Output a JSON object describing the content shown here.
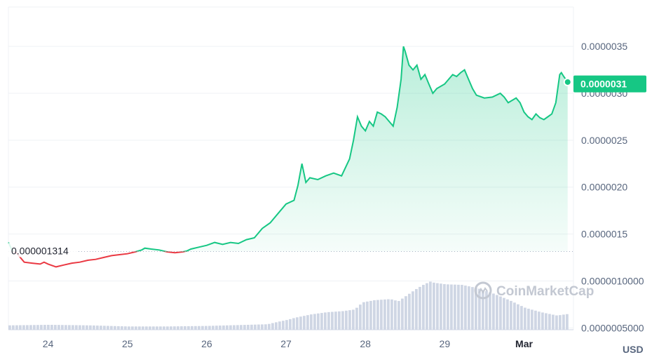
{
  "chart_data": {
    "type": "line",
    "currency": "USD",
    "colors": {
      "up": "#16c784",
      "down": "#ea3943",
      "volume": "#cfd6e4",
      "grid": "#eff2f5",
      "label_bg": "#16c784"
    },
    "y_ticks": [
      "0.0000035",
      "0.0000030",
      "0.0000025",
      "0.0000020",
      "0.0000015",
      "0.0000010000",
      "0.0000005000"
    ],
    "y_tick_values": [
      3.5e-06,
      3e-06,
      2.5e-06,
      2e-06,
      1.5e-06,
      1e-06,
      5e-07
    ],
    "ylim": [
      4.8e-07,
      3.92e-06
    ],
    "x_ticks": [
      "24",
      "25",
      "26",
      "27",
      "28",
      "29",
      "Mar"
    ],
    "x_tick_values": [
      0,
      1,
      2,
      3,
      4,
      5,
      6
    ],
    "xlim": [
      -0.5,
      6.57
    ],
    "open_price_label": "0.000001314",
    "open_price": 1.314e-06,
    "last_price_label": "0.0000031",
    "last_price": 3.1e-06,
    "watermark": "CoinMarketCap",
    "series": [
      {
        "values": [
          [
            -0.5,
            1.41
          ],
          [
            -0.45,
            1.32
          ],
          [
            -0.4,
            1.3
          ],
          [
            -0.3,
            1.2
          ],
          [
            -0.2,
            1.19
          ],
          [
            -0.1,
            1.18
          ],
          [
            -0.05,
            1.2
          ],
          [
            0.0,
            1.18
          ],
          [
            0.1,
            1.15
          ],
          [
            0.2,
            1.17
          ],
          [
            0.3,
            1.19
          ],
          [
            0.4,
            1.2
          ],
          [
            0.5,
            1.22
          ],
          [
            0.6,
            1.23
          ],
          [
            0.7,
            1.25
          ],
          [
            0.8,
            1.27
          ],
          [
            0.9,
            1.28
          ],
          [
            1.0,
            1.29
          ],
          [
            1.1,
            1.31
          ],
          [
            1.18,
            1.33
          ],
          [
            1.22,
            1.35
          ],
          [
            1.3,
            1.34
          ],
          [
            1.4,
            1.33
          ],
          [
            1.5,
            1.31
          ],
          [
            1.6,
            1.3
          ],
          [
            1.7,
            1.31
          ],
          [
            1.75,
            1.32
          ],
          [
            1.8,
            1.34
          ],
          [
            1.9,
            1.36
          ],
          [
            2.0,
            1.38
          ],
          [
            2.1,
            1.41
          ],
          [
            2.2,
            1.39
          ],
          [
            2.3,
            1.41
          ],
          [
            2.4,
            1.4
          ],
          [
            2.5,
            1.44
          ],
          [
            2.6,
            1.46
          ],
          [
            2.7,
            1.56
          ],
          [
            2.8,
            1.62
          ],
          [
            2.9,
            1.72
          ],
          [
            3.0,
            1.82
          ],
          [
            3.1,
            1.86
          ],
          [
            3.15,
            2.02
          ],
          [
            3.2,
            2.25
          ],
          [
            3.25,
            2.05
          ],
          [
            3.3,
            2.1
          ],
          [
            3.4,
            2.08
          ],
          [
            3.5,
            2.12
          ],
          [
            3.6,
            2.15
          ],
          [
            3.7,
            2.12
          ],
          [
            3.8,
            2.3
          ],
          [
            3.85,
            2.5
          ],
          [
            3.9,
            2.75
          ],
          [
            3.95,
            2.65
          ],
          [
            4.0,
            2.6
          ],
          [
            4.05,
            2.7
          ],
          [
            4.1,
            2.65
          ],
          [
            4.15,
            2.8
          ],
          [
            4.2,
            2.78
          ],
          [
            4.25,
            2.75
          ],
          [
            4.3,
            2.7
          ],
          [
            4.35,
            2.65
          ],
          [
            4.4,
            2.85
          ],
          [
            4.45,
            3.15
          ],
          [
            4.48,
            3.5
          ],
          [
            4.5,
            3.45
          ],
          [
            4.55,
            3.3
          ],
          [
            4.6,
            3.25
          ],
          [
            4.65,
            3.3
          ],
          [
            4.7,
            3.15
          ],
          [
            4.75,
            3.2
          ],
          [
            4.8,
            3.1
          ],
          [
            4.85,
            3.0
          ],
          [
            4.9,
            3.05
          ],
          [
            5.0,
            3.1
          ],
          [
            5.05,
            3.15
          ],
          [
            5.1,
            3.2
          ],
          [
            5.15,
            3.18
          ],
          [
            5.2,
            3.22
          ],
          [
            5.25,
            3.25
          ],
          [
            5.3,
            3.15
          ],
          [
            5.35,
            3.05
          ],
          [
            5.4,
            2.98
          ],
          [
            5.5,
            2.95
          ],
          [
            5.6,
            2.96
          ],
          [
            5.7,
            3.0
          ],
          [
            5.75,
            2.96
          ],
          [
            5.8,
            2.9
          ],
          [
            5.9,
            2.95
          ],
          [
            5.95,
            2.9
          ],
          [
            6.0,
            2.8
          ],
          [
            6.05,
            2.75
          ],
          [
            6.1,
            2.72
          ],
          [
            6.15,
            2.78
          ],
          [
            6.2,
            2.74
          ],
          [
            6.25,
            2.72
          ],
          [
            6.3,
            2.75
          ],
          [
            6.35,
            2.78
          ],
          [
            6.4,
            2.9
          ],
          [
            6.45,
            3.2
          ],
          [
            6.47,
            3.22
          ],
          [
            6.5,
            3.18
          ],
          [
            6.55,
            3.12
          ]
        ]
      }
    ],
    "volume_range": [
      0,
      10
    ],
    "volume": [
      [
        -0.5,
        0.8
      ],
      [
        0.0,
        0.9
      ],
      [
        0.5,
        0.8
      ],
      [
        1.0,
        0.6
      ],
      [
        1.5,
        0.6
      ],
      [
        2.0,
        0.7
      ],
      [
        2.5,
        0.9
      ],
      [
        2.75,
        1.0
      ],
      [
        2.9,
        1.5
      ],
      [
        3.0,
        1.8
      ],
      [
        3.1,
        2.2
      ],
      [
        3.3,
        2.8
      ],
      [
        3.5,
        3.2
      ],
      [
        3.7,
        3.4
      ],
      [
        3.85,
        3.7
      ],
      [
        3.95,
        5.0
      ],
      [
        4.1,
        5.4
      ],
      [
        4.3,
        5.6
      ],
      [
        4.4,
        5.2
      ],
      [
        4.5,
        6.2
      ],
      [
        4.6,
        7.2
      ],
      [
        4.7,
        8.1
      ],
      [
        4.8,
        8.8
      ],
      [
        4.85,
        8.6
      ],
      [
        5.0,
        8.3
      ],
      [
        5.2,
        8.2
      ],
      [
        5.4,
        7.6
      ],
      [
        5.6,
        6.6
      ],
      [
        5.8,
        5.4
      ],
      [
        6.0,
        4.0
      ],
      [
        6.2,
        3.2
      ],
      [
        6.4,
        2.6
      ],
      [
        6.55,
        2.9
      ]
    ]
  }
}
